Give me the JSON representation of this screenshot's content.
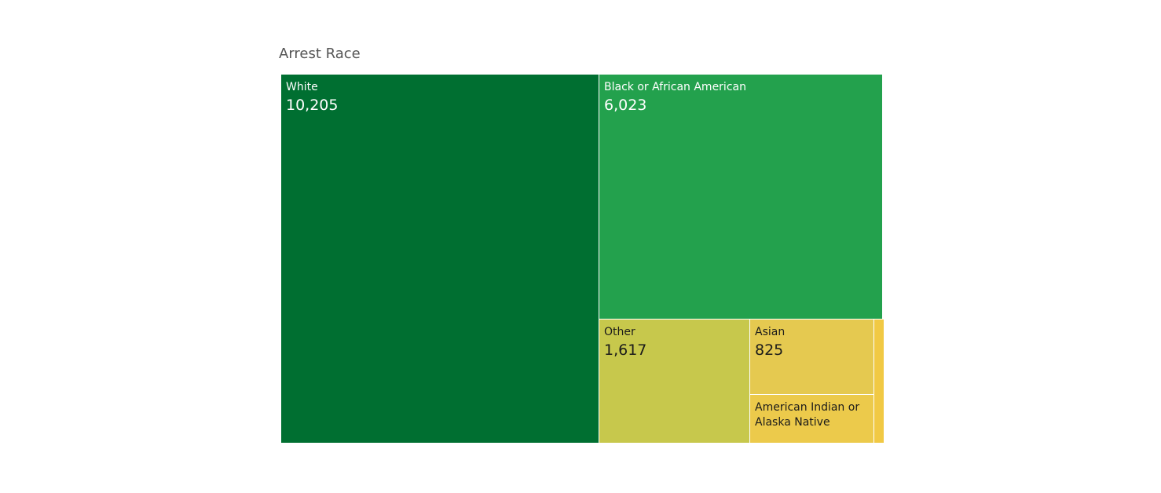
{
  "chart_data": {
    "type": "treemap",
    "title": "Arrest Race",
    "items": [
      {
        "label": "White",
        "value": 10205,
        "display_value": "10,205",
        "color": "#006f31",
        "text_color": "#ffffff",
        "show_value": true
      },
      {
        "label": "Black or African American",
        "value": 6023,
        "display_value": "6,023",
        "color": "#23a14d",
        "text_color": "#ffffff",
        "show_value": true
      },
      {
        "label": "Other",
        "value": 1617,
        "display_value": "1,617",
        "color": "#c7c84c",
        "text_color": "#1a1a1a",
        "show_value": true
      },
      {
        "label": "Asian",
        "value": 825,
        "display_value": "825",
        "color": "#e5c950",
        "text_color": "#1a1a1a",
        "show_value": true
      },
      {
        "label": "American Indian or Alaska Native",
        "value": 526,
        "display_value": "",
        "color": "#ecca4b",
        "text_color": "#1a1a1a",
        "show_value": false
      },
      {
        "label": "",
        "value": 70,
        "display_value": "",
        "color": "#f1c944",
        "text_color": "#1a1a1a",
        "show_value": false
      }
    ]
  }
}
